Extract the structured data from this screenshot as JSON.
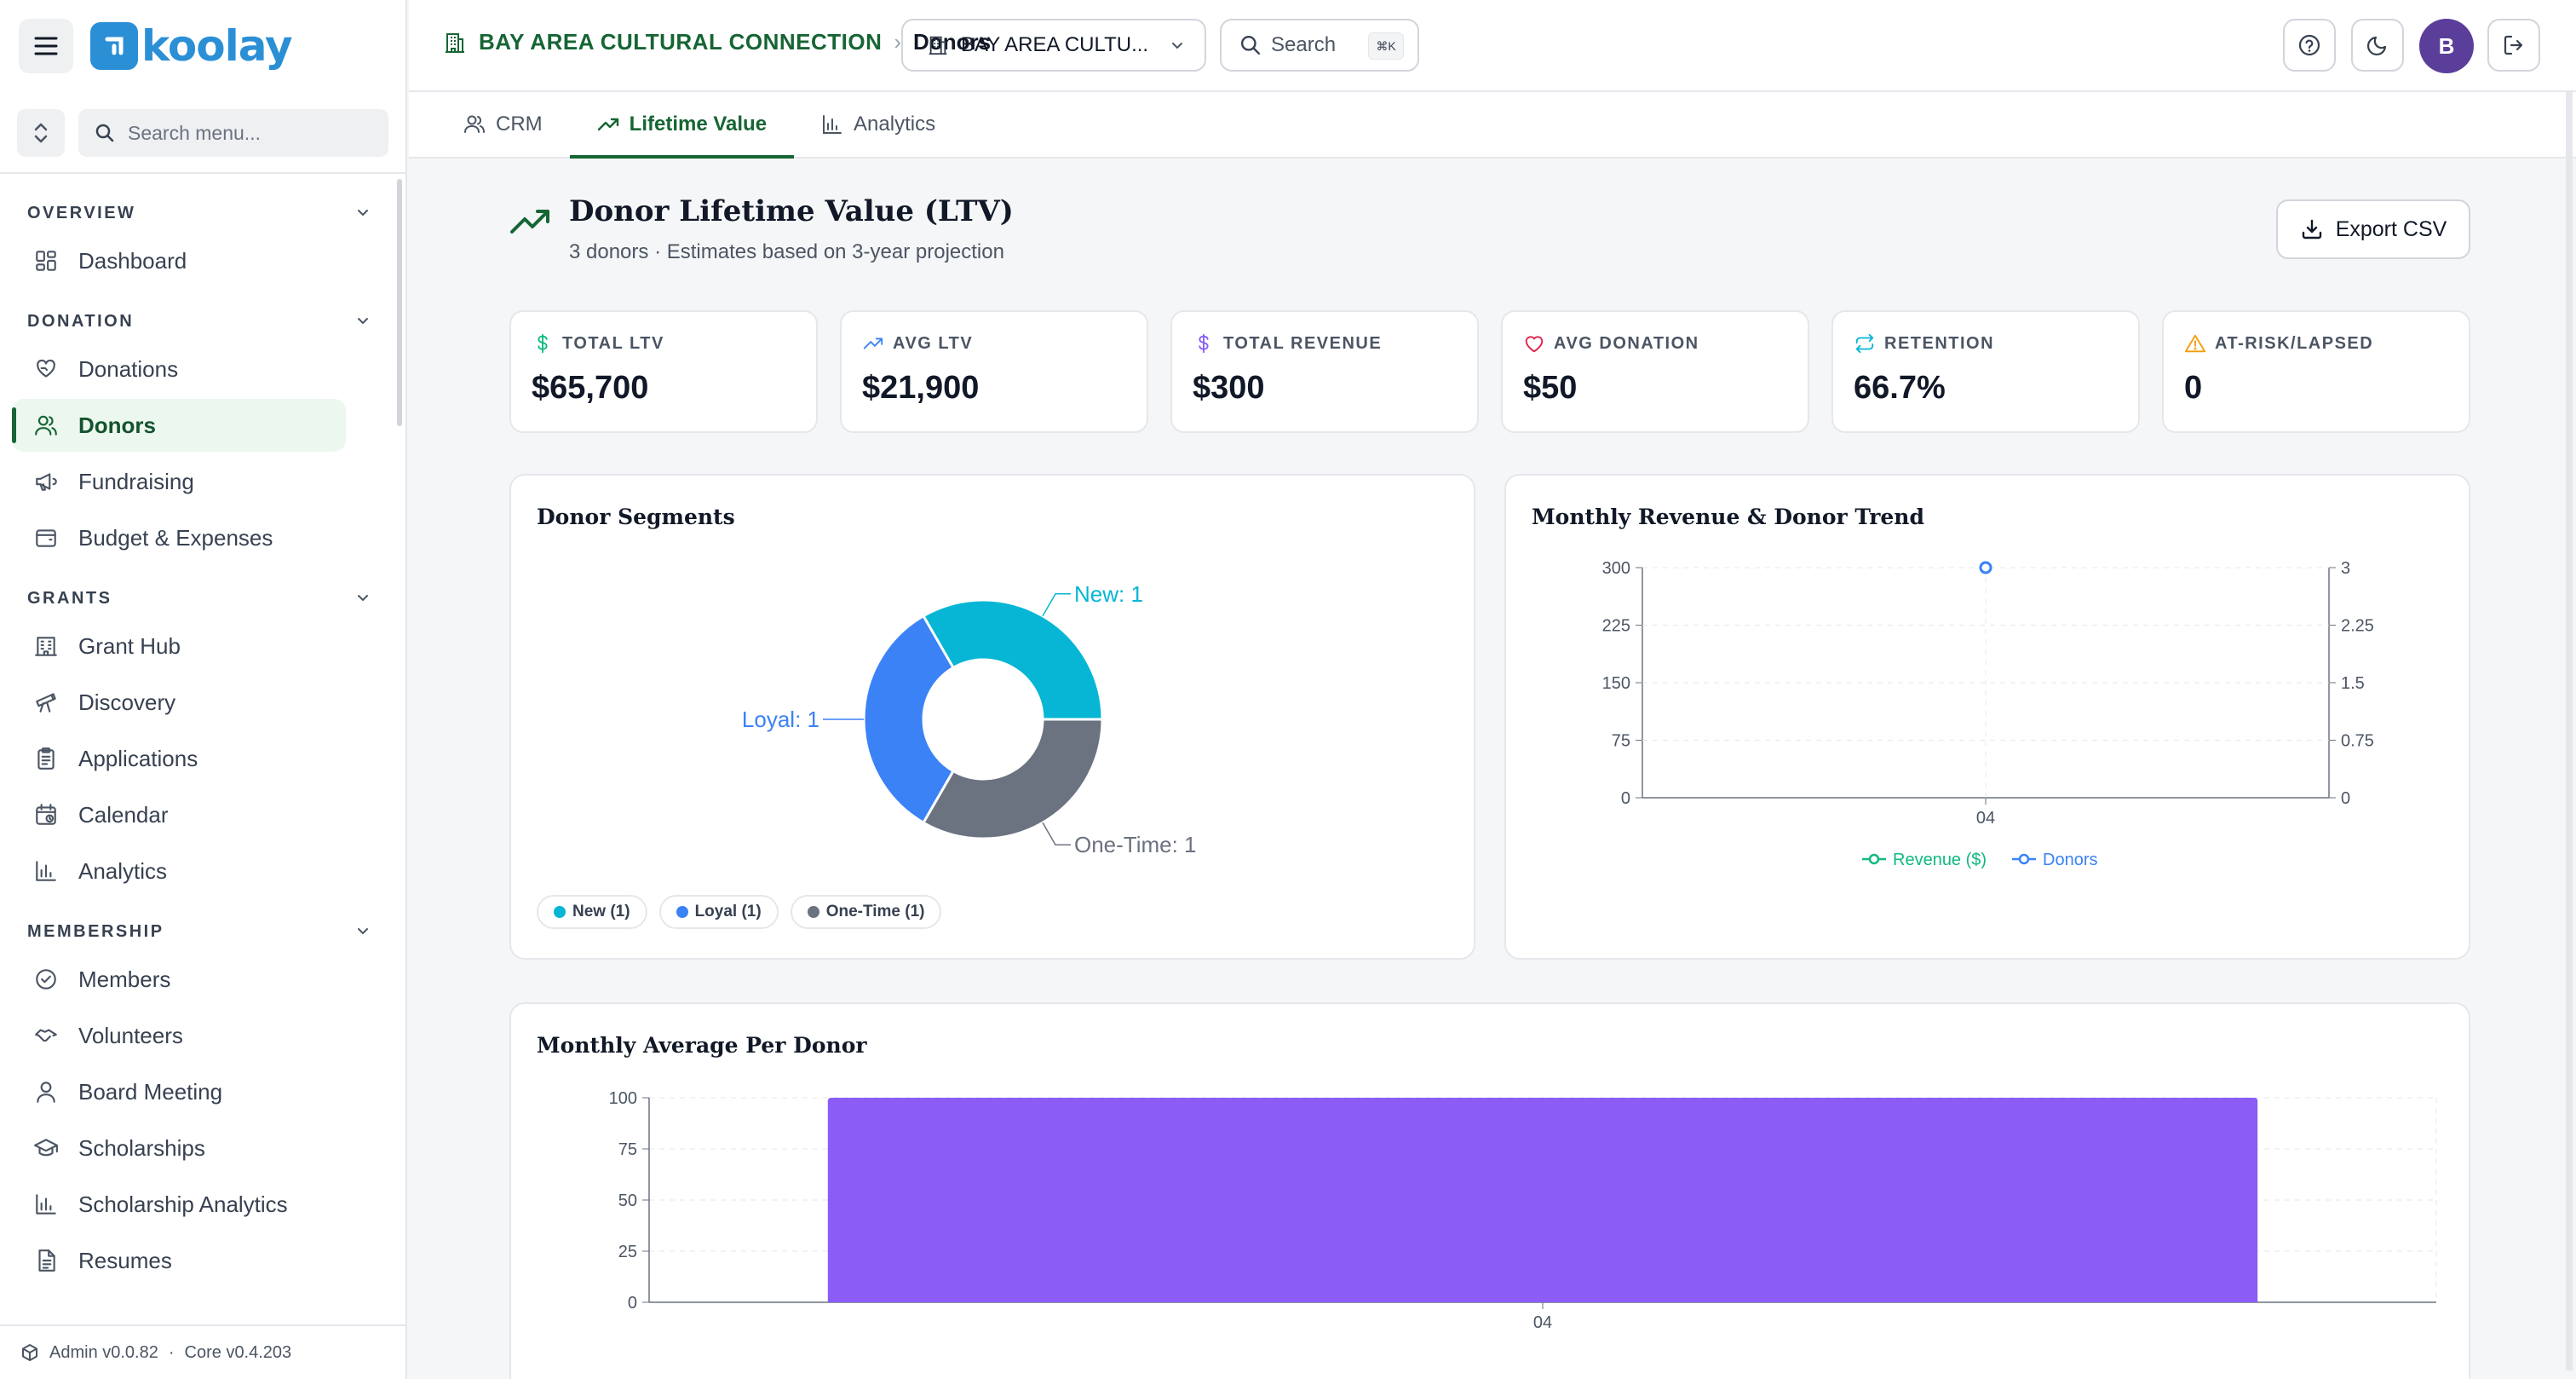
{
  "app": {
    "logo_text": "koolay"
  },
  "sidebar": {
    "search_placeholder": "Search menu...",
    "sections": [
      {
        "title": "OVERVIEW",
        "items": [
          {
            "label": "Dashboard",
            "icon": "grid-icon"
          }
        ]
      },
      {
        "title": "DONATION",
        "items": [
          {
            "label": "Donations",
            "icon": "heart-hand-icon"
          },
          {
            "label": "Donors",
            "icon": "users-icon",
            "active": true
          },
          {
            "label": "Fundraising",
            "icon": "megaphone-icon"
          },
          {
            "label": "Budget & Expenses",
            "icon": "wallet-icon"
          }
        ]
      },
      {
        "title": "GRANTS",
        "items": [
          {
            "label": "Grant Hub",
            "icon": "building-icon"
          },
          {
            "label": "Discovery",
            "icon": "telescope-icon"
          },
          {
            "label": "Applications",
            "icon": "clipboard-icon"
          },
          {
            "label": "Calendar",
            "icon": "calendar-icon"
          },
          {
            "label": "Analytics",
            "icon": "bar-chart-icon"
          }
        ]
      },
      {
        "title": "MEMBERSHIP",
        "items": [
          {
            "label": "Members",
            "icon": "badge-check-icon"
          },
          {
            "label": "Volunteers",
            "icon": "handshake-icon"
          },
          {
            "label": "Board Meeting",
            "icon": "user-icon"
          },
          {
            "label": "Scholarships",
            "icon": "graduation-cap-icon"
          },
          {
            "label": "Scholarship Analytics",
            "icon": "bar-chart-icon"
          },
          {
            "label": "Resumes",
            "icon": "file-icon"
          }
        ]
      }
    ],
    "footer": {
      "admin": "Admin v0.0.82",
      "sep": "·",
      "core": "Core v0.4.203"
    }
  },
  "topbar": {
    "org": "BAY AREA CULTURAL CONNECTION",
    "separator": "›",
    "page": "Donors",
    "org_select": "BAY AREA CULTU...",
    "search_label": "Search",
    "search_kbd": "⌘K",
    "avatar_initial": "B"
  },
  "tabs": [
    {
      "label": "CRM",
      "icon": "users-icon"
    },
    {
      "label": "Lifetime Value",
      "icon": "trending-up-icon",
      "active": true
    },
    {
      "label": "Analytics",
      "icon": "bar-chart-icon"
    }
  ],
  "page": {
    "title": "Donor Lifetime Value (LTV)",
    "subtitle": "3 donors · Estimates based on 3-year projection",
    "export_label": "Export CSV"
  },
  "kpis": [
    {
      "label": "TOTAL LTV",
      "value": "$65,700",
      "icon": "dollar-icon",
      "color": "#10b981"
    },
    {
      "label": "AVG LTV",
      "value": "$21,900",
      "icon": "trending-up-icon",
      "color": "#3b82f6"
    },
    {
      "label": "TOTAL REVENUE",
      "value": "$300",
      "icon": "dollar-icon",
      "color": "#8b5cf6"
    },
    {
      "label": "AVG DONATION",
      "value": "$50",
      "icon": "heart-icon",
      "color": "#e11d48"
    },
    {
      "label": "RETENTION",
      "value": "66.7%",
      "icon": "repeat-icon",
      "color": "#06b6d4"
    },
    {
      "label": "AT-RISK/LAPSED",
      "value": "0",
      "icon": "alert-triangle-icon",
      "color": "#f59e0b"
    }
  ],
  "chart_data": [
    {
      "type": "pie",
      "title": "Donor Segments",
      "slices": [
        {
          "label": "New",
          "value": 1,
          "color": "#06b6d4",
          "callout": "New: 1",
          "chip": "New (1)"
        },
        {
          "label": "One-Time",
          "value": 1,
          "color": "#6b7280",
          "callout": "One-Time: 1",
          "chip": "One-Time (1)"
        },
        {
          "label": "Loyal",
          "value": 1,
          "color": "#3b82f6",
          "callout": "Loyal: 1",
          "chip": "Loyal (1)"
        }
      ]
    },
    {
      "type": "line",
      "title": "Monthly Revenue & Donor Trend",
      "categories": [
        "04"
      ],
      "series": [
        {
          "name": "Revenue ($)",
          "values": [
            300
          ],
          "color": "#10b981",
          "axis": "left"
        },
        {
          "name": "Donors",
          "values": [
            3
          ],
          "color": "#3b82f6",
          "axis": "right"
        }
      ],
      "ylim_left": [
        0,
        300
      ],
      "yticks_left": [
        "0",
        "75",
        "150",
        "225",
        "300"
      ],
      "ylim_right": [
        0,
        3
      ],
      "yticks_right": [
        "0",
        "0.75",
        "1.5",
        "2.25",
        "3"
      ],
      "grid": true,
      "legend": "bottom"
    },
    {
      "type": "bar",
      "title": "Monthly Average Per Donor",
      "categories": [
        "04"
      ],
      "values": [
        100
      ],
      "color": "#8b5cf6",
      "ylim": [
        0,
        100
      ],
      "yticks": [
        "0",
        "25",
        "50",
        "75",
        "100"
      ],
      "grid": true
    }
  ]
}
